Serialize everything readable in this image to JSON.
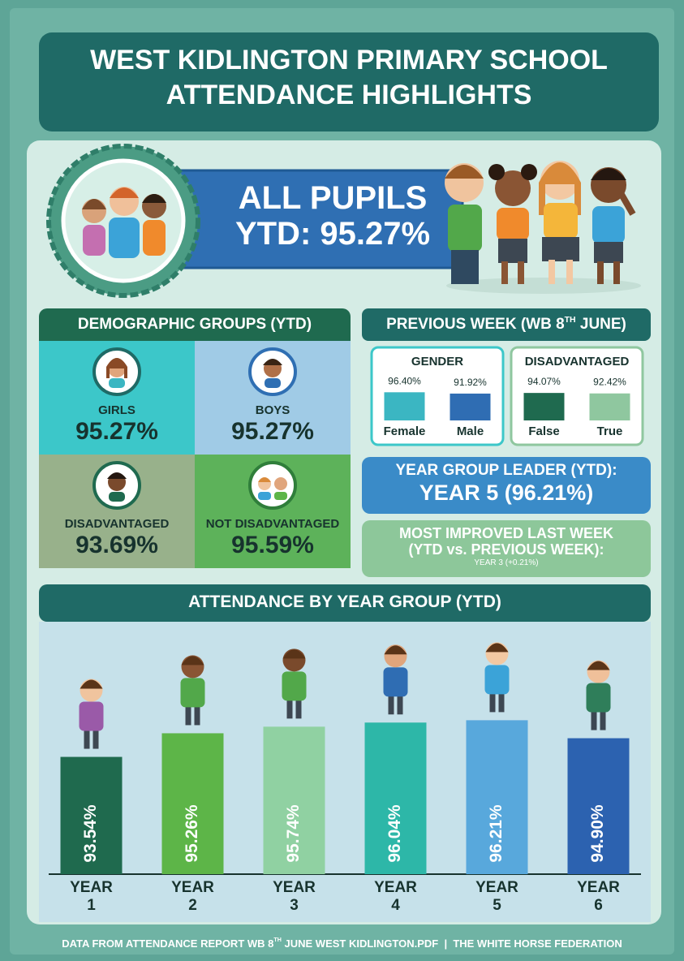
{
  "header": {
    "title_line1": "WEST KIDLINGTON PRIMARY SCHOOL",
    "title_line2": "ATTENDANCE HIGHLIGHTS"
  },
  "all_pupils": {
    "label": "ALL PUPILS",
    "ytd": "YTD: 95.27%"
  },
  "demographics": {
    "title": "DEMOGRAPHIC GROUPS (YTD)",
    "groups": [
      {
        "label": "GIRLS",
        "value": "95.27%"
      },
      {
        "label": "BOYS",
        "value": "95.27%"
      },
      {
        "label": "DISADVANTAGED",
        "value": "93.69%"
      },
      {
        "label": "NOT DISADVANTAGED",
        "value": "95.59%"
      }
    ]
  },
  "previous_week": {
    "title": [
      "PREVIOUS WEEK (WB 8",
      "TH",
      " JUNE)"
    ]
  },
  "chart_data": [
    {
      "type": "bar",
      "title": "GENDER",
      "categories": [
        "Female",
        "Male"
      ],
      "values": [
        96.4,
        91.92
      ],
      "value_labels": [
        "96.40%",
        "91.92%"
      ],
      "colors": [
        "#3bb6c2",
        "#2f6db3"
      ],
      "ylim": [
        0,
        100
      ]
    },
    {
      "type": "bar",
      "title": "DISADVANTAGED",
      "categories": [
        "False",
        "True"
      ],
      "values": [
        94.07,
        92.42
      ],
      "value_labels": [
        "94.07%",
        "92.42%"
      ],
      "colors": [
        "#1f6a4f",
        "#8fc79f"
      ],
      "ylim": [
        0,
        100
      ]
    },
    {
      "type": "bar",
      "title": "ATTENDANCE BY YEAR GROUP (YTD)",
      "categories": [
        "YEAR 1",
        "YEAR 2",
        "YEAR 3",
        "YEAR 4",
        "YEAR 5",
        "YEAR 6"
      ],
      "values": [
        93.54,
        95.26,
        95.74,
        96.04,
        96.21,
        94.9
      ],
      "value_labels": [
        "93.54%",
        "95.26%",
        "95.74%",
        "96.04%",
        "96.21%",
        "94.90%"
      ],
      "colors": [
        "#1f6a4e",
        "#5db548",
        "#90d1a2",
        "#2db7a8",
        "#58a8dc",
        "#2c62b0"
      ],
      "ylim": [
        85,
        97
      ]
    }
  ],
  "year_group_leader": {
    "label": "YEAR GROUP LEADER (YTD):",
    "value": "YEAR 5 (96.21%)"
  },
  "most_improved": {
    "label_line1": "MOST IMPROVED LAST WEEK",
    "label_line2": "(YTD vs. PREVIOUS WEEK):",
    "value": "YEAR 3 (+0.21%)"
  },
  "footer": {
    "parts": [
      "DATA FROM ATTENDANCE REPORT WB 8",
      "TH",
      " JUNE WEST KIDLINGTON.PDF  |  THE WHITE HORSE FEDERATION"
    ]
  }
}
